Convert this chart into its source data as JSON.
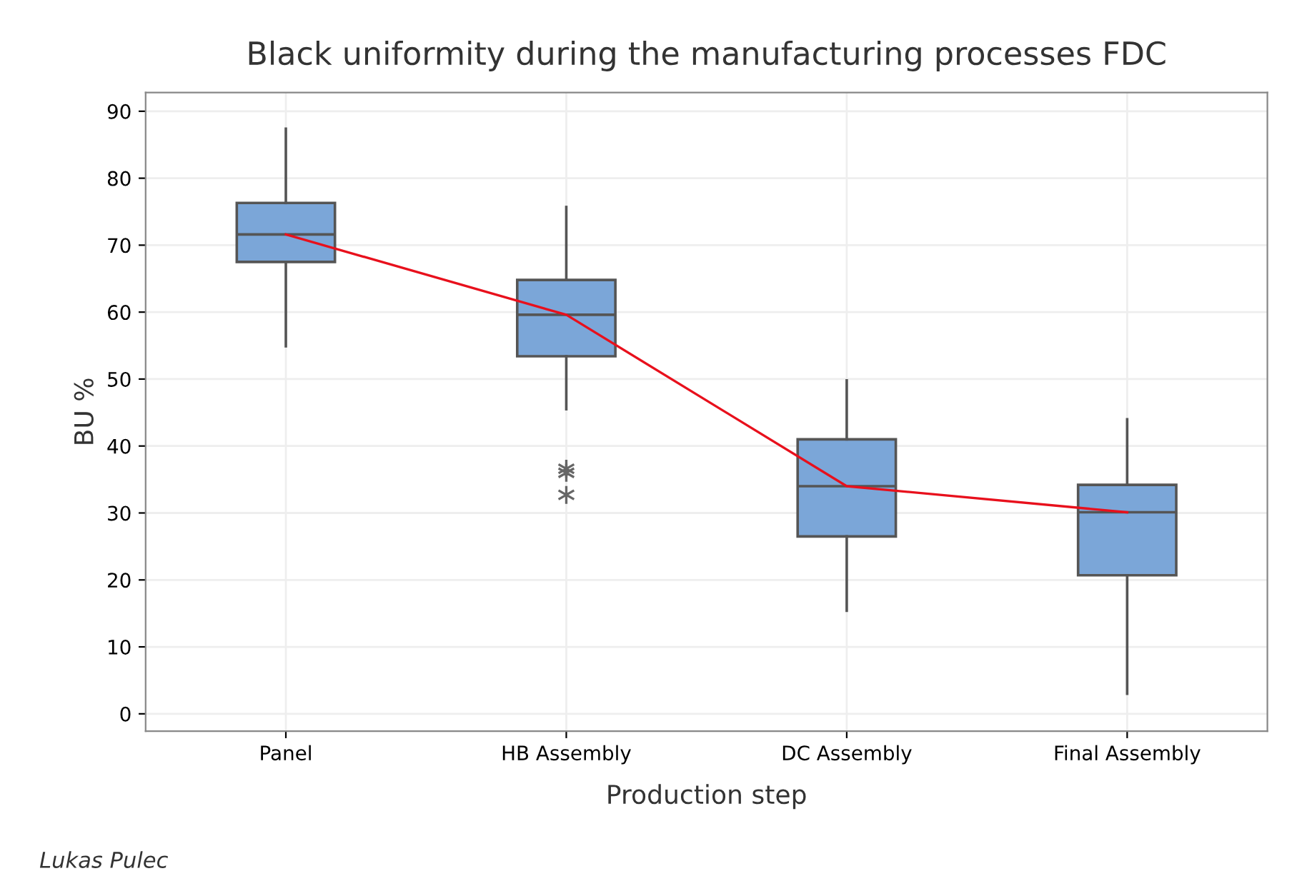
{
  "chart_data": {
    "type": "box",
    "title": "Black uniformity during the manufacturing processes FDC",
    "xlabel": "Production step",
    "ylabel": "BU %",
    "categories": [
      "Panel",
      "HB Assembly",
      "DC Assembly",
      "Final Assembly"
    ],
    "ylim": [
      -2.6,
      92.8
    ],
    "yticks": [
      0,
      10,
      20,
      30,
      40,
      50,
      60,
      70,
      80,
      90
    ],
    "grid": true,
    "series": [
      {
        "color": "#7ba6d8",
        "boxes": [
          {
            "low": 54.9,
            "q1": 67.5,
            "median": 71.6,
            "q3": 76.3,
            "high": 87.4
          },
          {
            "low": 45.5,
            "q1": 53.4,
            "median": 59.6,
            "q3": 64.8,
            "high": 75.7,
            "outliers": [
              36.6,
              36.0,
              32.7
            ]
          },
          {
            "low": 15.4,
            "q1": 26.5,
            "median": 34.0,
            "q3": 41.0,
            "high": 49.8
          },
          {
            "low": 3.0,
            "q1": 20.7,
            "median": 30.1,
            "q3": 34.2,
            "high": 44.0
          }
        ]
      },
      {
        "type": "line",
        "color": "#e8101c",
        "values": [
          71.6,
          59.6,
          34.0,
          30.1
        ]
      }
    ],
    "annotations": [
      "Lukas Pulec"
    ]
  }
}
